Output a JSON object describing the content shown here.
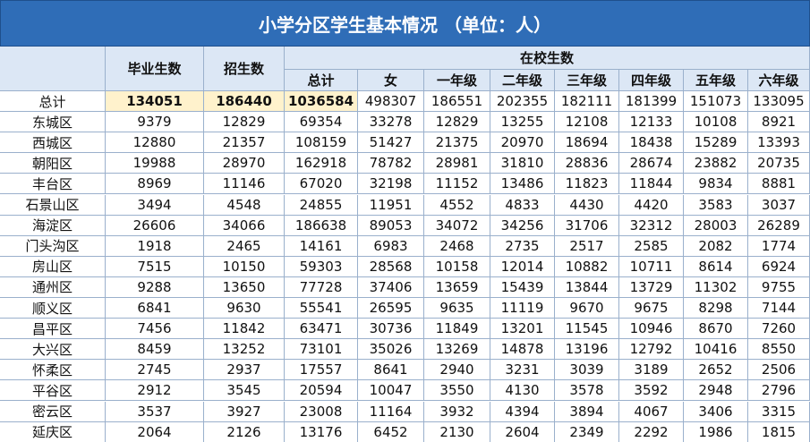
{
  "header": {
    "title": "小学分区学生基本情况 （单位：人）"
  },
  "table": {
    "group_label": "在校生数",
    "columns": [
      "毕业生数",
      "招生数",
      "总计",
      "女",
      "一年级",
      "二年级",
      "三年级",
      "四年级",
      "五年级",
      "六年级"
    ],
    "rows": [
      {
        "label": "总计",
        "values": [
          134051,
          186440,
          1036584,
          498307,
          186551,
          202355,
          182111,
          181399,
          151073,
          133095
        ]
      },
      {
        "label": "东城区",
        "values": [
          9379,
          12829,
          69354,
          33278,
          12829,
          13255,
          12108,
          12133,
          10108,
          8921
        ]
      },
      {
        "label": "西城区",
        "values": [
          12880,
          21357,
          108159,
          51427,
          21375,
          20970,
          18694,
          18438,
          15289,
          13393
        ]
      },
      {
        "label": "朝阳区",
        "values": [
          19988,
          28970,
          162918,
          78782,
          28981,
          31810,
          28836,
          28674,
          23882,
          20735
        ]
      },
      {
        "label": "丰台区",
        "values": [
          8969,
          11146,
          67020,
          32198,
          11152,
          13486,
          11823,
          11844,
          9834,
          8881
        ]
      },
      {
        "label": "石景山区",
        "values": [
          3494,
          4548,
          24855,
          11951,
          4552,
          4833,
          4430,
          4420,
          3583,
          3037
        ]
      },
      {
        "label": "海淀区",
        "values": [
          26606,
          34066,
          186638,
          89053,
          34072,
          34256,
          31706,
          32312,
          28003,
          26289
        ]
      },
      {
        "label": "门头沟区",
        "values": [
          1918,
          2465,
          14161,
          6983,
          2468,
          2735,
          2517,
          2585,
          2082,
          1774
        ]
      },
      {
        "label": "房山区",
        "values": [
          7515,
          10150,
          59303,
          28568,
          10158,
          12014,
          10882,
          10711,
          8614,
          6924
        ]
      },
      {
        "label": "通州区",
        "values": [
          9288,
          13650,
          77728,
          37406,
          13659,
          15439,
          13844,
          13729,
          11302,
          9755
        ]
      },
      {
        "label": "顺义区",
        "values": [
          6841,
          9630,
          55541,
          26595,
          9635,
          11119,
          9670,
          9675,
          8298,
          7144
        ]
      },
      {
        "label": "昌平区",
        "values": [
          7456,
          11842,
          63471,
          30736,
          11849,
          13201,
          11545,
          10946,
          8670,
          7260
        ]
      },
      {
        "label": "大兴区",
        "values": [
          8459,
          13252,
          73101,
          35026,
          13269,
          14878,
          13196,
          12792,
          10416,
          8550
        ]
      },
      {
        "label": "怀柔区",
        "values": [
          2745,
          2937,
          17557,
          8641,
          2940,
          3231,
          3039,
          3189,
          2652,
          2506
        ]
      },
      {
        "label": "平谷区",
        "values": [
          2912,
          3545,
          20594,
          10047,
          3550,
          4130,
          3578,
          3592,
          2948,
          2796
        ]
      },
      {
        "label": "密云区",
        "values": [
          3537,
          3927,
          23008,
          11164,
          3932,
          4394,
          3894,
          4067,
          3406,
          3315
        ]
      },
      {
        "label": "延庆区",
        "values": [
          2064,
          2126,
          13176,
          6452,
          2130,
          2604,
          2349,
          2292,
          1986,
          1815
        ]
      }
    ]
  }
}
